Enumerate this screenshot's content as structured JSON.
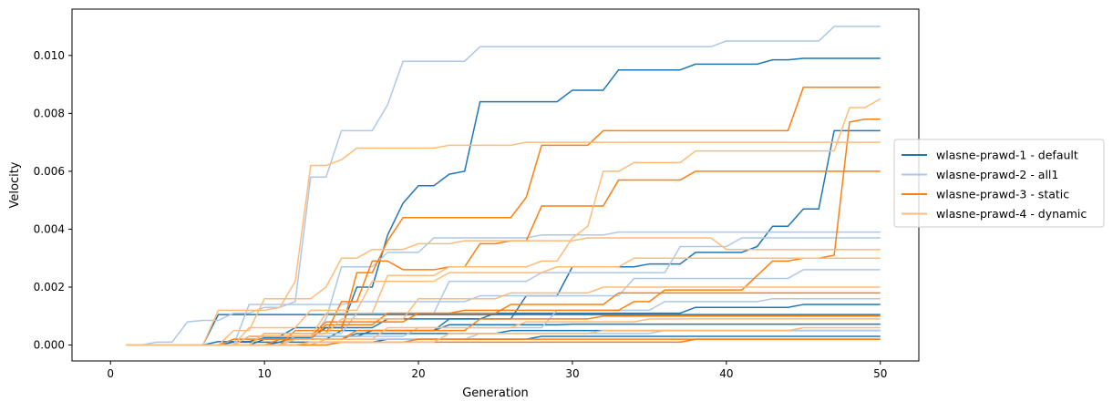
{
  "chart_data": {
    "type": "line",
    "title": "",
    "xlabel": "Generation",
    "ylabel": "Velocity",
    "xlim": [
      -2.5,
      52.5
    ],
    "ylim": [
      -0.00055,
      0.0116
    ],
    "x_ticks": [
      0,
      10,
      20,
      30,
      40,
      50
    ],
    "x_tick_labels": [
      "0",
      "10",
      "20",
      "30",
      "40",
      "50"
    ],
    "y_ticks": [
      0.0,
      0.002,
      0.004,
      0.006,
      0.008,
      0.01
    ],
    "y_tick_labels": [
      "0.000",
      "0.002",
      "0.004",
      "0.006",
      "0.008",
      "0.010"
    ],
    "grid": false,
    "legend_position": "center-right outside",
    "legend": [
      {
        "label": "wlasne-prawd-1 - default",
        "color": "#1f77b4"
      },
      {
        "label": "wlasne-prawd-2 - all1",
        "color": "#aec7e8"
      },
      {
        "label": "wlasne-prawd-3 - static",
        "color": "#ff7f0e"
      },
      {
        "label": "wlasne-prawd-4 - dynamic",
        "color": "#ffbb78"
      }
    ],
    "series": [
      {
        "group": "wlasne-prawd-1 - default",
        "color": "#1f77b4",
        "x_start": 1,
        "steps": [
          [
            1,
            0
          ],
          [
            7,
            0.00012
          ],
          [
            10,
            0.00025
          ],
          [
            14,
            0.0006
          ],
          [
            16,
            0.002
          ],
          [
            18,
            0.0038
          ],
          [
            19,
            0.0049
          ],
          [
            20,
            0.0055
          ],
          [
            22,
            0.0059
          ],
          [
            23,
            0.006
          ],
          [
            24,
            0.0084
          ],
          [
            30,
            0.0088
          ],
          [
            33,
            0.0095
          ],
          [
            38,
            0.0097
          ],
          [
            43,
            0.00985
          ],
          [
            45,
            0.0099
          ]
        ]
      },
      {
        "group": "wlasne-prawd-1 - default",
        "color": "#1f77b4",
        "x_start": 1,
        "steps": [
          [
            1,
            0
          ],
          [
            8,
            0.0001
          ],
          [
            12,
            0.0003
          ],
          [
            17,
            0.0005
          ],
          [
            22,
            0.0009
          ],
          [
            27,
            0.0017
          ],
          [
            30,
            0.0027
          ],
          [
            35,
            0.0028
          ],
          [
            38,
            0.0032
          ],
          [
            42,
            0.0034
          ],
          [
            43,
            0.0041
          ],
          [
            45,
            0.0047
          ],
          [
            47,
            0.0074
          ]
        ]
      },
      {
        "group": "wlasne-prawd-1 - default",
        "color": "#1f77b4",
        "x_start": 1,
        "steps": [
          [
            1,
            0
          ],
          [
            7,
            0.00105
          ],
          [
            20,
            0.00105
          ],
          [
            35,
            0.00105
          ]
        ]
      },
      {
        "group": "wlasne-prawd-1 - default",
        "color": "#1f77b4",
        "x_start": 1,
        "steps": [
          [
            1,
            0
          ],
          [
            9,
            0.0003
          ],
          [
            12,
            0.0006
          ],
          [
            18,
            0.0009
          ],
          [
            25,
            0.0011
          ],
          [
            38,
            0.0013
          ],
          [
            45,
            0.0014
          ]
        ]
      },
      {
        "group": "wlasne-prawd-1 - default",
        "color": "#1f77b4",
        "x_start": 1,
        "steps": [
          [
            1,
            0
          ],
          [
            10,
            0.0002
          ],
          [
            15,
            0.0005
          ],
          [
            22,
            0.0007
          ],
          [
            30,
            0.00072
          ]
        ]
      },
      {
        "group": "wlasne-prawd-1 - default",
        "color": "#1f77b4",
        "x_start": 1,
        "steps": [
          [
            1,
            0
          ],
          [
            11,
            0.0001
          ],
          [
            18,
            0.0002
          ],
          [
            28,
            0.0003
          ],
          [
            40,
            0.0003
          ]
        ]
      },
      {
        "group": "wlasne-prawd-1 - default",
        "color": "#1f77b4",
        "x_start": 1,
        "steps": [
          [
            1,
            0
          ],
          [
            12,
            0.0002
          ],
          [
            16,
            0.0004
          ],
          [
            26,
            0.0005
          ],
          [
            40,
            0.0005
          ]
        ]
      },
      {
        "group": "wlasne-prawd-2 - all1",
        "color": "#aec7e8",
        "x_start": 1,
        "steps": [
          [
            1,
            0
          ],
          [
            3,
            0.0001
          ],
          [
            5,
            0.0008
          ],
          [
            6,
            0.00085
          ],
          [
            8,
            0.0011
          ],
          [
            10,
            0.0013
          ],
          [
            12,
            0.0015
          ],
          [
            13,
            0.0058
          ],
          [
            14,
            0.0058
          ],
          [
            15,
            0.0074
          ],
          [
            17,
            0.0074
          ],
          [
            18,
            0.0083
          ],
          [
            19,
            0.0098
          ],
          [
            23,
            0.0098
          ],
          [
            24,
            0.0103
          ],
          [
            39,
            0.0103
          ],
          [
            40,
            0.0105
          ],
          [
            46,
            0.0105
          ],
          [
            47,
            0.011
          ]
        ]
      },
      {
        "group": "wlasne-prawd-2 - all1",
        "color": "#aec7e8",
        "x_start": 1,
        "steps": [
          [
            1,
            0
          ],
          [
            8,
            0.0002
          ],
          [
            14,
            0.0009
          ],
          [
            15,
            0.0027
          ],
          [
            18,
            0.0032
          ],
          [
            21,
            0.0037
          ],
          [
            28,
            0.0038
          ],
          [
            33,
            0.0039
          ]
        ]
      },
      {
        "group": "wlasne-prawd-2 - all1",
        "color": "#aec7e8",
        "x_start": 1,
        "steps": [
          [
            1,
            0
          ],
          [
            10,
            0.0004
          ],
          [
            16,
            0.0011
          ],
          [
            22,
            0.0022
          ],
          [
            28,
            0.0025
          ],
          [
            37,
            0.0034
          ],
          [
            41,
            0.0037
          ]
        ]
      },
      {
        "group": "wlasne-prawd-2 - all1",
        "color": "#aec7e8",
        "x_start": 1,
        "steps": [
          [
            1,
            0
          ],
          [
            9,
            0.0014
          ],
          [
            16,
            0.0015
          ],
          [
            24,
            0.0017
          ],
          [
            34,
            0.0023
          ],
          [
            45,
            0.0026
          ]
        ]
      },
      {
        "group": "wlasne-prawd-2 - all1",
        "color": "#aec7e8",
        "x_start": 1,
        "steps": [
          [
            1,
            0
          ],
          [
            12,
            0.0003
          ],
          [
            20,
            0.0006
          ],
          [
            29,
            0.0012
          ],
          [
            36,
            0.0015
          ],
          [
            43,
            0.0016
          ]
        ]
      },
      {
        "group": "wlasne-prawd-2 - all1",
        "color": "#aec7e8",
        "x_start": 1,
        "steps": [
          [
            1,
            0
          ],
          [
            14,
            0.0002
          ],
          [
            24,
            0.0004
          ],
          [
            36,
            0.0005
          ],
          [
            45,
            0.0005
          ]
        ]
      },
      {
        "group": "wlasne-prawd-3 - static",
        "color": "#ff7f0e",
        "x_start": 1,
        "steps": [
          [
            1,
            0
          ],
          [
            12,
            0.0005
          ],
          [
            16,
            0.0025
          ],
          [
            18,
            0.0036
          ],
          [
            19,
            0.0044
          ],
          [
            26,
            0.0044
          ],
          [
            27,
            0.0051
          ],
          [
            28,
            0.0069
          ],
          [
            31,
            0.0069
          ],
          [
            32,
            0.0074
          ],
          [
            44,
            0.0074
          ],
          [
            45,
            0.0089
          ]
        ]
      },
      {
        "group": "wlasne-prawd-3 - static",
        "color": "#ff7f0e",
        "x_start": 1,
        "steps": [
          [
            1,
            0
          ],
          [
            10,
            0.0004
          ],
          [
            15,
            0.0015
          ],
          [
            17,
            0.0029
          ],
          [
            19,
            0.0026
          ],
          [
            22,
            0.0027
          ],
          [
            24,
            0.0035
          ],
          [
            26,
            0.0036
          ],
          [
            28,
            0.0048
          ],
          [
            33,
            0.0057
          ],
          [
            37,
            0.0057
          ],
          [
            38,
            0.006
          ],
          [
            41,
            0.006
          ]
        ]
      },
      {
        "group": "wlasne-prawd-3 - static",
        "color": "#ff7f0e",
        "x_start": 1,
        "steps": [
          [
            1,
            0
          ],
          [
            8,
            0.0002
          ],
          [
            14,
            0.0007
          ],
          [
            18,
            0.0011
          ],
          [
            23,
            0.0012
          ],
          [
            28,
            0.0012
          ],
          [
            34,
            0.0015
          ],
          [
            36,
            0.0019
          ],
          [
            42,
            0.0024
          ],
          [
            43,
            0.0029
          ],
          [
            45,
            0.003
          ],
          [
            47,
            0.0031
          ],
          [
            48,
            0.0077
          ],
          [
            49,
            0.0078
          ]
        ]
      },
      {
        "group": "wlasne-prawd-3 - static",
        "color": "#ff7f0e",
        "x_start": 1,
        "steps": [
          [
            1,
            0
          ],
          [
            9,
            0.0003
          ],
          [
            14,
            0.0008
          ],
          [
            20,
            0.0011
          ],
          [
            26,
            0.0014
          ],
          [
            33,
            0.0018
          ],
          [
            40,
            0.0018
          ]
        ]
      },
      {
        "group": "wlasne-prawd-3 - static",
        "color": "#ff7f0e",
        "x_start": 1,
        "steps": [
          [
            1,
            0
          ],
          [
            11,
            0.0002
          ],
          [
            16,
            0.0005
          ],
          [
            24,
            0.0009
          ],
          [
            32,
            0.001
          ],
          [
            40,
            0.001
          ]
        ]
      },
      {
        "group": "wlasne-prawd-3 - static",
        "color": "#ff7f0e",
        "x_start": 1,
        "steps": [
          [
            1,
            0
          ],
          [
            13,
            0.0001
          ],
          [
            20,
            0.0002
          ],
          [
            30,
            0.0002
          ],
          [
            42,
            0.0002
          ]
        ]
      },
      {
        "group": "wlasne-prawd-3 - static",
        "color": "#ff7f0e",
        "x_start": 1,
        "steps": [
          [
            1,
            0
          ],
          [
            15,
            0.0001
          ],
          [
            25,
            0.0001
          ],
          [
            38,
            0.0002
          ],
          [
            45,
            0.0002
          ]
        ]
      },
      {
        "group": "wlasne-prawd-4 - dynamic",
        "color": "#ffbb78",
        "x_start": 1,
        "steps": [
          [
            1,
            0
          ],
          [
            7,
            0.0012
          ],
          [
            11,
            0.0013
          ],
          [
            12,
            0.0022
          ],
          [
            13,
            0.0062
          ],
          [
            14,
            0.0062
          ],
          [
            15,
            0.0064
          ],
          [
            16,
            0.0068
          ],
          [
            18,
            0.0068
          ],
          [
            22,
            0.0069
          ],
          [
            27,
            0.007
          ],
          [
            50,
            0.007
          ]
        ]
      },
      {
        "group": "wlasne-prawd-4 - dynamic",
        "color": "#ffbb78",
        "x_start": 1,
        "steps": [
          [
            1,
            0
          ],
          [
            9,
            0.0003
          ],
          [
            14,
            0.0011
          ],
          [
            18,
            0.0024
          ],
          [
            22,
            0.0027
          ],
          [
            28,
            0.0029
          ],
          [
            30,
            0.0037
          ],
          [
            31,
            0.0041
          ],
          [
            32,
            0.006
          ],
          [
            33,
            0.006
          ],
          [
            34,
            0.0063
          ],
          [
            38,
            0.0067
          ],
          [
            47,
            0.0067
          ],
          [
            48,
            0.0082
          ],
          [
            50,
            0.0085
          ]
        ]
      },
      {
        "group": "wlasne-prawd-4 - dynamic",
        "color": "#ffbb78",
        "x_start": 1,
        "steps": [
          [
            1,
            0
          ],
          [
            8,
            0.0005
          ],
          [
            10,
            0.0016
          ],
          [
            14,
            0.002
          ],
          [
            15,
            0.003
          ],
          [
            17,
            0.0033
          ],
          [
            20,
            0.0035
          ],
          [
            23,
            0.0036
          ],
          [
            31,
            0.0037
          ],
          [
            40,
            0.0033
          ]
        ]
      },
      {
        "group": "wlasne-prawd-4 - dynamic",
        "color": "#ffbb78",
        "x_start": 1,
        "steps": [
          [
            1,
            0
          ],
          [
            9,
            0.0006
          ],
          [
            13,
            0.0012
          ],
          [
            17,
            0.0022
          ],
          [
            22,
            0.0025
          ],
          [
            29,
            0.0027
          ],
          [
            34,
            0.003
          ],
          [
            40,
            0.003
          ]
        ]
      },
      {
        "group": "wlasne-prawd-4 - dynamic",
        "color": "#ffbb78",
        "x_start": 1,
        "steps": [
          [
            1,
            0
          ],
          [
            10,
            0.0004
          ],
          [
            15,
            0.0009
          ],
          [
            20,
            0.0016
          ],
          [
            26,
            0.0018
          ],
          [
            32,
            0.002
          ],
          [
            40,
            0.002
          ]
        ]
      },
      {
        "group": "wlasne-prawd-4 - dynamic",
        "color": "#ffbb78",
        "x_start": 1,
        "steps": [
          [
            1,
            0
          ],
          [
            12,
            0.0002
          ],
          [
            18,
            0.0006
          ],
          [
            27,
            0.0008
          ],
          [
            35,
            0.0009
          ],
          [
            44,
            0.0009
          ]
        ]
      },
      {
        "group": "wlasne-prawd-4 - dynamic",
        "color": "#ffbb78",
        "x_start": 1,
        "steps": [
          [
            1,
            0
          ],
          [
            13,
            0.0001
          ],
          [
            22,
            0.0004
          ],
          [
            32,
            0.0005
          ],
          [
            45,
            0.0006
          ]
        ]
      }
    ]
  }
}
